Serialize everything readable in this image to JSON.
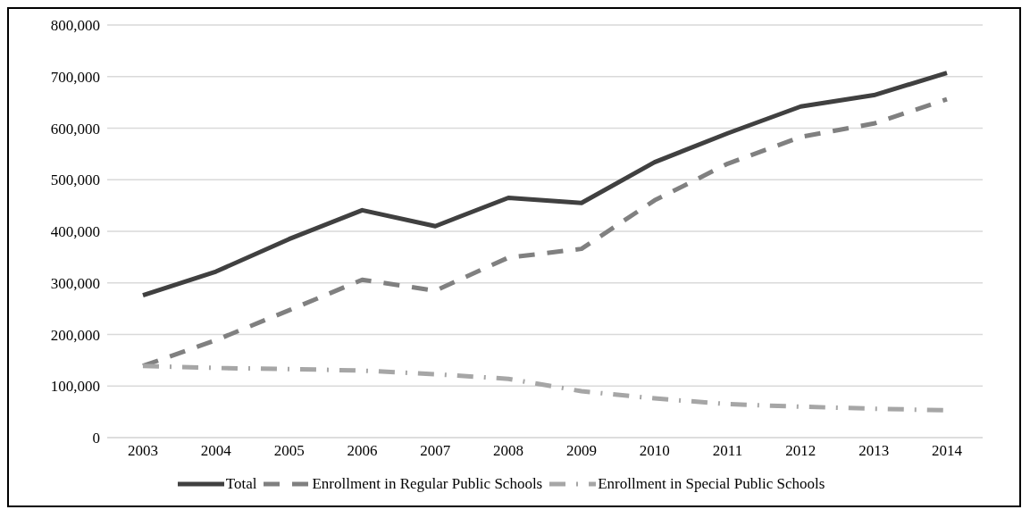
{
  "chart_data": {
    "type": "line",
    "categories": [
      "2003",
      "2004",
      "2005",
      "2006",
      "2007",
      "2008",
      "2009",
      "2010",
      "2011",
      "2012",
      "2013",
      "2014"
    ],
    "series": [
      {
        "name": "Total",
        "color": "#404040",
        "line_style": "solid",
        "values": [
          276000,
          322000,
          385000,
          441000,
          410000,
          465000,
          455000,
          534000,
          590000,
          642000,
          664000,
          707000
        ]
      },
      {
        "name": "Enrollment in Regular Public Schools",
        "color": "#808080",
        "line_style": "dashed",
        "values": [
          139000,
          189000,
          247000,
          306000,
          285000,
          349000,
          366000,
          460000,
          531000,
          583000,
          609000,
          656000
        ]
      },
      {
        "name": "Enrollment in Special Public Schools",
        "color": "#a6a6a6",
        "line_style": "dashdot",
        "values": [
          139000,
          135000,
          133000,
          130000,
          123000,
          114000,
          90000,
          76000,
          65000,
          60000,
          56000,
          53000
        ]
      }
    ],
    "ylim": [
      0,
      800000
    ],
    "yticks": [
      0,
      {
        "value": 100000,
        "label": "100,000"
      },
      {
        "value": 200000,
        "label": "200,000"
      },
      {
        "value": 300000,
        "label": "300,000"
      },
      {
        "value": 400000,
        "label": "400,000"
      },
      {
        "value": 500000,
        "label": "500,000"
      },
      {
        "value": 600000,
        "label": "600,000"
      },
      {
        "value": 700000,
        "label": "700,000"
      },
      {
        "value": 800000,
        "label": "800,000"
      }
    ],
    "grid": "y",
    "legend": "bottom",
    "marker": "none"
  }
}
